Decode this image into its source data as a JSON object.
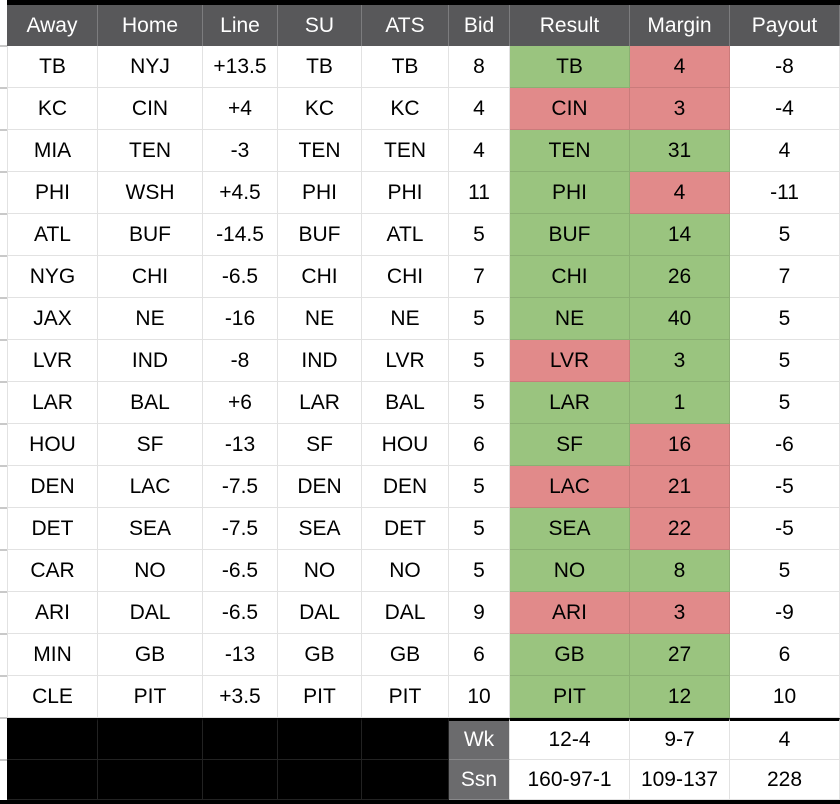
{
  "colors": {
    "green": "#9ac47f",
    "red": "#e18a8a",
    "header_bg": "#58585a",
    "footer_label_bg": "#6b6b6d",
    "gridline": "#e2e2e2"
  },
  "table": {
    "headers": [
      "Away",
      "Home",
      "Line",
      "SU",
      "ATS",
      "Bid",
      "Result",
      "Margin",
      "Payout"
    ],
    "rows": [
      {
        "away": "TB",
        "home": "NYJ",
        "line": "+13.5",
        "su": "TB",
        "ats": "TB",
        "bid": "8",
        "result": "TB",
        "result_color": "green",
        "margin": "4",
        "margin_color": "red",
        "payout": "-8"
      },
      {
        "away": "KC",
        "home": "CIN",
        "line": "+4",
        "su": "KC",
        "ats": "KC",
        "bid": "4",
        "result": "CIN",
        "result_color": "red",
        "margin": "3",
        "margin_color": "red",
        "payout": "-4"
      },
      {
        "away": "MIA",
        "home": "TEN",
        "line": "-3",
        "su": "TEN",
        "ats": "TEN",
        "bid": "4",
        "result": "TEN",
        "result_color": "green",
        "margin": "31",
        "margin_color": "green",
        "payout": "4"
      },
      {
        "away": "PHI",
        "home": "WSH",
        "line": "+4.5",
        "su": "PHI",
        "ats": "PHI",
        "bid": "11",
        "result": "PHI",
        "result_color": "green",
        "margin": "4",
        "margin_color": "red",
        "payout": "-11"
      },
      {
        "away": "ATL",
        "home": "BUF",
        "line": "-14.5",
        "su": "BUF",
        "ats": "ATL",
        "bid": "5",
        "result": "BUF",
        "result_color": "green",
        "margin": "14",
        "margin_color": "green",
        "payout": "5"
      },
      {
        "away": "NYG",
        "home": "CHI",
        "line": "-6.5",
        "su": "CHI",
        "ats": "CHI",
        "bid": "7",
        "result": "CHI",
        "result_color": "green",
        "margin": "26",
        "margin_color": "green",
        "payout": "7"
      },
      {
        "away": "JAX",
        "home": "NE",
        "line": "-16",
        "su": "NE",
        "ats": "NE",
        "bid": "5",
        "result": "NE",
        "result_color": "green",
        "margin": "40",
        "margin_color": "green",
        "payout": "5"
      },
      {
        "away": "LVR",
        "home": "IND",
        "line": "-8",
        "su": "IND",
        "ats": "LVR",
        "bid": "5",
        "result": "LVR",
        "result_color": "red",
        "margin": "3",
        "margin_color": "green",
        "payout": "5"
      },
      {
        "away": "LAR",
        "home": "BAL",
        "line": "+6",
        "su": "LAR",
        "ats": "BAL",
        "bid": "5",
        "result": "LAR",
        "result_color": "green",
        "margin": "1",
        "margin_color": "green",
        "payout": "5"
      },
      {
        "away": "HOU",
        "home": "SF",
        "line": "-13",
        "su": "SF",
        "ats": "HOU",
        "bid": "6",
        "result": "SF",
        "result_color": "green",
        "margin": "16",
        "margin_color": "red",
        "payout": "-6"
      },
      {
        "away": "DEN",
        "home": "LAC",
        "line": "-7.5",
        "su": "DEN",
        "ats": "DEN",
        "bid": "5",
        "result": "LAC",
        "result_color": "red",
        "margin": "21",
        "margin_color": "red",
        "payout": "-5"
      },
      {
        "away": "DET",
        "home": "SEA",
        "line": "-7.5",
        "su": "SEA",
        "ats": "DET",
        "bid": "5",
        "result": "SEA",
        "result_color": "green",
        "margin": "22",
        "margin_color": "red",
        "payout": "-5"
      },
      {
        "away": "CAR",
        "home": "NO",
        "line": "-6.5",
        "su": "NO",
        "ats": "NO",
        "bid": "5",
        "result": "NO",
        "result_color": "green",
        "margin": "8",
        "margin_color": "green",
        "payout": "5"
      },
      {
        "away": "ARI",
        "home": "DAL",
        "line": "-6.5",
        "su": "DAL",
        "ats": "DAL",
        "bid": "9",
        "result": "ARI",
        "result_color": "red",
        "margin": "3",
        "margin_color": "red",
        "payout": "-9"
      },
      {
        "away": "MIN",
        "home": "GB",
        "line": "-13",
        "su": "GB",
        "ats": "GB",
        "bid": "6",
        "result": "GB",
        "result_color": "green",
        "margin": "27",
        "margin_color": "green",
        "payout": "6"
      },
      {
        "away": "CLE",
        "home": "PIT",
        "line": "+3.5",
        "su": "PIT",
        "ats": "PIT",
        "bid": "10",
        "result": "PIT",
        "result_color": "green",
        "margin": "12",
        "margin_color": "green",
        "payout": "10"
      }
    ],
    "footer_rows": [
      {
        "label": "Wk",
        "result": "12-4",
        "margin": "9-7",
        "payout": "4"
      },
      {
        "label": "Ssn",
        "result": "160-97-1",
        "margin": "109-137",
        "payout": "228"
      }
    ]
  }
}
